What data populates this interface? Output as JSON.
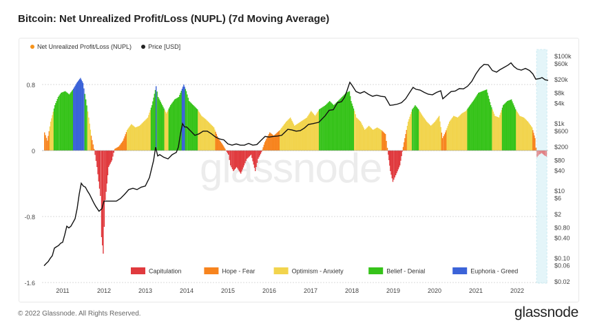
{
  "title": "Bitcoin: Net Unrealized Profit/Loss (NUPL) (7d Moving Average)",
  "footer": {
    "copyright": "© 2022 Glassnode. All Rights Reserved.",
    "logo": "glassnode"
  },
  "watermark": "glassnode",
  "top_legend": [
    {
      "label": "Net Unrealized Profit/Loss (NUPL)",
      "color": "#f7931a"
    },
    {
      "label": "Price [USD]",
      "color": "#222222"
    }
  ],
  "chart_data": {
    "type": "area",
    "left_axis": {
      "ticks": [
        0.8,
        0,
        -0.8,
        -1.6
      ],
      "tick_labels": [
        "0.8",
        "0",
        "-0.8",
        "-1.6"
      ],
      "range": [
        -1.6,
        1.05
      ]
    },
    "right_axis": {
      "scale": "log",
      "ticks": [
        100000,
        60000,
        20000,
        8000,
        4000,
        1000,
        600,
        200,
        80,
        40,
        10,
        6,
        2,
        0.8,
        0.4,
        0.1,
        0.06,
        0.02
      ],
      "tick_labels": [
        "$100k",
        "$60k",
        "$20k",
        "$8k",
        "$4k",
        "$1k",
        "$600",
        "$200",
        "$80",
        "$40",
        "$10",
        "$6",
        "$2",
        "$0.80",
        "$0.40",
        "$0.10",
        "$0.06",
        "$0.02"
      ],
      "range": [
        0.02,
        100000
      ]
    },
    "x_axis": {
      "labels": [
        "2011",
        "2012",
        "2013",
        "2014",
        "2015",
        "2016",
        "2017",
        "2018",
        "2019",
        "2020",
        "2021",
        "2022"
      ],
      "range": [
        2010.5,
        2022.75
      ]
    },
    "zones": [
      {
        "name": "Capitulation",
        "min": -2,
        "max": 0,
        "color": "#e03a3e"
      },
      {
        "name": "Hope - Fear",
        "min": 0,
        "max": 0.25,
        "color": "#f7841e"
      },
      {
        "name": "Optimism - Anxiety",
        "min": 0.25,
        "max": 0.5,
        "color": "#f2d44d"
      },
      {
        "name": "Belief - Denial",
        "min": 0.5,
        "max": 0.75,
        "color": "#36c31a"
      },
      {
        "name": "Euphoria - Greed",
        "min": 0.75,
        "max": 2,
        "color": "#3b63d8"
      }
    ],
    "nupl": [
      [
        2010.55,
        0.22
      ],
      [
        2010.62,
        0.12
      ],
      [
        2010.7,
        0.35
      ],
      [
        2010.8,
        0.55
      ],
      [
        2010.88,
        0.65
      ],
      [
        2010.95,
        0.7
      ],
      [
        2011.05,
        0.72
      ],
      [
        2011.15,
        0.68
      ],
      [
        2011.25,
        0.75
      ],
      [
        2011.33,
        0.82
      ],
      [
        2011.42,
        0.88
      ],
      [
        2011.48,
        0.82
      ],
      [
        2011.55,
        0.62
      ],
      [
        2011.62,
        0.4
      ],
      [
        2011.68,
        0.18
      ],
      [
        2011.75,
        0.02
      ],
      [
        2011.82,
        -0.2
      ],
      [
        2011.9,
        -0.55
      ],
      [
        2011.93,
        -1.05
      ],
      [
        2011.97,
        -1.25
      ],
      [
        2012.02,
        -0.6
      ],
      [
        2012.1,
        -0.2
      ],
      [
        2012.18,
        -0.12
      ],
      [
        2012.25,
        0.02
      ],
      [
        2012.35,
        0.05
      ],
      [
        2012.45,
        0.12
      ],
      [
        2012.55,
        0.25
      ],
      [
        2012.65,
        0.32
      ],
      [
        2012.75,
        0.28
      ],
      [
        2012.85,
        0.3
      ],
      [
        2012.95,
        0.35
      ],
      [
        2013.05,
        0.4
      ],
      [
        2013.15,
        0.55
      ],
      [
        2013.25,
        0.78
      ],
      [
        2013.3,
        0.65
      ],
      [
        2013.4,
        0.55
      ],
      [
        2013.5,
        0.45
      ],
      [
        2013.6,
        0.55
      ],
      [
        2013.7,
        0.62
      ],
      [
        2013.8,
        0.65
      ],
      [
        2013.88,
        0.75
      ],
      [
        2013.92,
        0.8
      ],
      [
        2013.98,
        0.72
      ],
      [
        2014.05,
        0.6
      ],
      [
        2014.15,
        0.55
      ],
      [
        2014.25,
        0.5
      ],
      [
        2014.35,
        0.42
      ],
      [
        2014.45,
        0.38
      ],
      [
        2014.55,
        0.33
      ],
      [
        2014.65,
        0.28
      ],
      [
        2014.75,
        0.15
      ],
      [
        2014.85,
        0.08
      ],
      [
        2014.92,
        0.02
      ],
      [
        2015.0,
        -0.05
      ],
      [
        2015.05,
        -0.18
      ],
      [
        2015.12,
        -0.25
      ],
      [
        2015.2,
        -0.2
      ],
      [
        2015.3,
        -0.28
      ],
      [
        2015.38,
        -0.18
      ],
      [
        2015.45,
        -0.1
      ],
      [
        2015.55,
        -0.05
      ],
      [
        2015.65,
        -0.25
      ],
      [
        2015.72,
        -0.1
      ],
      [
        2015.8,
        -0.02
      ],
      [
        2015.88,
        0.1
      ],
      [
        2016.0,
        0.22
      ],
      [
        2016.1,
        0.18
      ],
      [
        2016.25,
        0.25
      ],
      [
        2016.4,
        0.35
      ],
      [
        2016.5,
        0.4
      ],
      [
        2016.6,
        0.3
      ],
      [
        2016.75,
        0.35
      ],
      [
        2016.9,
        0.4
      ],
      [
        2017.0,
        0.48
      ],
      [
        2017.1,
        0.42
      ],
      [
        2017.2,
        0.5
      ],
      [
        2017.35,
        0.55
      ],
      [
        2017.45,
        0.6
      ],
      [
        2017.55,
        0.55
      ],
      [
        2017.65,
        0.6
      ],
      [
        2017.75,
        0.65
      ],
      [
        2017.85,
        0.7
      ],
      [
        2017.93,
        0.72
      ],
      [
        2017.97,
        0.6
      ],
      [
        2018.05,
        0.48
      ],
      [
        2018.1,
        0.4
      ],
      [
        2018.2,
        0.35
      ],
      [
        2018.3,
        0.25
      ],
      [
        2018.4,
        0.3
      ],
      [
        2018.5,
        0.25
      ],
      [
        2018.6,
        0.28
      ],
      [
        2018.7,
        0.25
      ],
      [
        2018.8,
        0.2
      ],
      [
        2018.87,
        -0.05
      ],
      [
        2018.92,
        -0.25
      ],
      [
        2018.98,
        -0.38
      ],
      [
        2019.05,
        -0.3
      ],
      [
        2019.15,
        -0.18
      ],
      [
        2019.25,
        0.1
      ],
      [
        2019.35,
        0.35
      ],
      [
        2019.45,
        0.5
      ],
      [
        2019.52,
        0.55
      ],
      [
        2019.6,
        0.5
      ],
      [
        2019.7,
        0.42
      ],
      [
        2019.8,
        0.35
      ],
      [
        2019.9,
        0.3
      ],
      [
        2020.0,
        0.35
      ],
      [
        2020.1,
        0.42
      ],
      [
        2020.18,
        0.15
      ],
      [
        2020.25,
        0.22
      ],
      [
        2020.35,
        0.35
      ],
      [
        2020.45,
        0.42
      ],
      [
        2020.55,
        0.4
      ],
      [
        2020.65,
        0.45
      ],
      [
        2020.75,
        0.48
      ],
      [
        2020.85,
        0.55
      ],
      [
        2020.95,
        0.62
      ],
      [
        2021.05,
        0.7
      ],
      [
        2021.15,
        0.72
      ],
      [
        2021.25,
        0.74
      ],
      [
        2021.35,
        0.55
      ],
      [
        2021.45,
        0.42
      ],
      [
        2021.55,
        0.4
      ],
      [
        2021.65,
        0.55
      ],
      [
        2021.75,
        0.6
      ],
      [
        2021.85,
        0.62
      ],
      [
        2021.95,
        0.5
      ],
      [
        2022.05,
        0.42
      ],
      [
        2022.15,
        0.4
      ],
      [
        2022.25,
        0.35
      ],
      [
        2022.35,
        0.28
      ],
      [
        2022.42,
        0.15
      ],
      [
        2022.47,
        -0.08
      ],
      [
        2022.52,
        -0.05
      ],
      [
        2022.58,
        -0.03
      ],
      [
        2022.65,
        -0.06
      ],
      [
        2022.72,
        -0.08
      ]
    ],
    "price": [
      [
        2010.55,
        0.06
      ],
      [
        2010.6,
        0.07
      ],
      [
        2010.65,
        0.08
      ],
      [
        2010.7,
        0.1
      ],
      [
        2010.75,
        0.12
      ],
      [
        2010.8,
        0.2
      ],
      [
        2010.85,
        0.22
      ],
      [
        2010.9,
        0.24
      ],
      [
        2010.95,
        0.28
      ],
      [
        2011.0,
        0.3
      ],
      [
        2011.05,
        0.5
      ],
      [
        2011.1,
        0.9
      ],
      [
        2011.15,
        0.8
      ],
      [
        2011.2,
        0.9
      ],
      [
        2011.3,
        1.5
      ],
      [
        2011.35,
        3
      ],
      [
        2011.4,
        8
      ],
      [
        2011.45,
        17
      ],
      [
        2011.5,
        14
      ],
      [
        2011.55,
        13
      ],
      [
        2011.6,
        10
      ],
      [
        2011.65,
        8
      ],
      [
        2011.7,
        6
      ],
      [
        2011.75,
        4.5
      ],
      [
        2011.8,
        3.5
      ],
      [
        2011.88,
        2.5
      ],
      [
        2011.95,
        3
      ],
      [
        2012.0,
        5
      ],
      [
        2012.1,
        5
      ],
      [
        2012.2,
        5
      ],
      [
        2012.3,
        5
      ],
      [
        2012.4,
        6
      ],
      [
        2012.5,
        8
      ],
      [
        2012.6,
        11
      ],
      [
        2012.7,
        12
      ],
      [
        2012.8,
        11
      ],
      [
        2012.9,
        13
      ],
      [
        2013.0,
        14
      ],
      [
        2013.1,
        25
      ],
      [
        2013.2,
        80
      ],
      [
        2013.25,
        200
      ],
      [
        2013.3,
        110
      ],
      [
        2013.35,
        120
      ],
      [
        2013.45,
        100
      ],
      [
        2013.55,
        90
      ],
      [
        2013.65,
        120
      ],
      [
        2013.75,
        140
      ],
      [
        2013.8,
        200
      ],
      [
        2013.85,
        500
      ],
      [
        2013.9,
        1000
      ],
      [
        2013.95,
        800
      ],
      [
        2014.0,
        800
      ],
      [
        2014.1,
        600
      ],
      [
        2014.2,
        450
      ],
      [
        2014.3,
        500
      ],
      [
        2014.4,
        600
      ],
      [
        2014.5,
        600
      ],
      [
        2014.6,
        500
      ],
      [
        2014.7,
        400
      ],
      [
        2014.8,
        350
      ],
      [
        2014.9,
        330
      ],
      [
        2015.0,
        250
      ],
      [
        2015.1,
        230
      ],
      [
        2015.2,
        250
      ],
      [
        2015.3,
        230
      ],
      [
        2015.4,
        230
      ],
      [
        2015.5,
        260
      ],
      [
        2015.6,
        230
      ],
      [
        2015.7,
        240
      ],
      [
        2015.8,
        320
      ],
      [
        2015.9,
        420
      ],
      [
        2016.0,
        400
      ],
      [
        2016.1,
        420
      ],
      [
        2016.2,
        430
      ],
      [
        2016.3,
        450
      ],
      [
        2016.45,
        680
      ],
      [
        2016.55,
        650
      ],
      [
        2016.65,
        600
      ],
      [
        2016.75,
        620
      ],
      [
        2016.85,
        740
      ],
      [
        2016.95,
        950
      ],
      [
        2017.05,
        1000
      ],
      [
        2017.2,
        1100
      ],
      [
        2017.35,
        1700
      ],
      [
        2017.45,
        2500
      ],
      [
        2017.55,
        2600
      ],
      [
        2017.65,
        4200
      ],
      [
        2017.75,
        4500
      ],
      [
        2017.82,
        6000
      ],
      [
        2017.88,
        9500
      ],
      [
        2017.95,
        17000
      ],
      [
        2018.0,
        14000
      ],
      [
        2018.1,
        9000
      ],
      [
        2018.2,
        8000
      ],
      [
        2018.3,
        9000
      ],
      [
        2018.4,
        7500
      ],
      [
        2018.5,
        6500
      ],
      [
        2018.6,
        7000
      ],
      [
        2018.7,
        6500
      ],
      [
        2018.8,
        6300
      ],
      [
        2018.87,
        4500
      ],
      [
        2018.92,
        3500
      ],
      [
        2019.0,
        3600
      ],
      [
        2019.1,
        3800
      ],
      [
        2019.2,
        4200
      ],
      [
        2019.3,
        5500
      ],
      [
        2019.4,
        8500
      ],
      [
        2019.48,
        12000
      ],
      [
        2019.55,
        10500
      ],
      [
        2019.65,
        10000
      ],
      [
        2019.75,
        8500
      ],
      [
        2019.85,
        7500
      ],
      [
        2019.95,
        7200
      ],
      [
        2020.05,
        8500
      ],
      [
        2020.15,
        9500
      ],
      [
        2020.2,
        5500
      ],
      [
        2020.3,
        7000
      ],
      [
        2020.4,
        9000
      ],
      [
        2020.5,
        9300
      ],
      [
        2020.6,
        11000
      ],
      [
        2020.7,
        10800
      ],
      [
        2020.8,
        13000
      ],
      [
        2020.9,
        18000
      ],
      [
        2021.0,
        30000
      ],
      [
        2021.1,
        45000
      ],
      [
        2021.2,
        58000
      ],
      [
        2021.3,
        56000
      ],
      [
        2021.4,
        38000
      ],
      [
        2021.5,
        34000
      ],
      [
        2021.58,
        40000
      ],
      [
        2021.68,
        47000
      ],
      [
        2021.78,
        55000
      ],
      [
        2021.85,
        64000
      ],
      [
        2021.92,
        50000
      ],
      [
        2022.0,
        42000
      ],
      [
        2022.1,
        39000
      ],
      [
        2022.2,
        44000
      ],
      [
        2022.3,
        38000
      ],
      [
        2022.38,
        30000
      ],
      [
        2022.45,
        21000
      ],
      [
        2022.55,
        22000
      ],
      [
        2022.6,
        23500
      ],
      [
        2022.68,
        20000
      ],
      [
        2022.75,
        19500
      ]
    ],
    "highlight_range": [
      2022.47,
      2022.72
    ],
    "watermark": true
  }
}
